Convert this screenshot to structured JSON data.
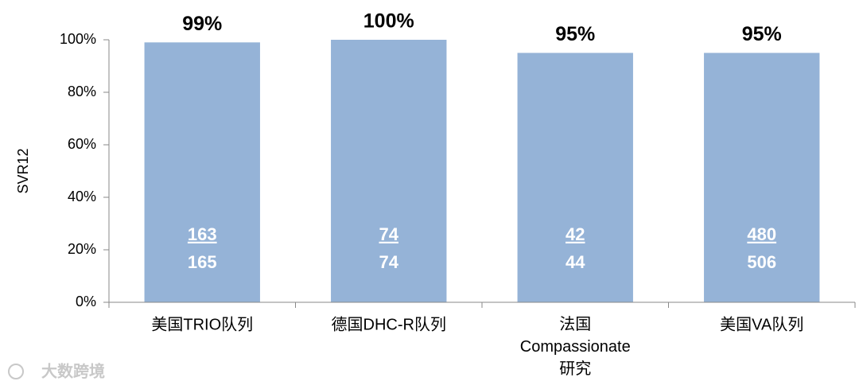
{
  "chart_data": {
    "type": "bar",
    "ylabel": "SVR12",
    "categories": [
      "美国TRIO队列",
      "德国DHC-R队列",
      "法国 Compassionate 研究",
      "美国VA队列"
    ],
    "values": [
      99,
      100,
      95,
      95
    ],
    "value_labels": [
      "99%",
      "100%",
      "95%",
      "95%"
    ],
    "numerators": [
      163,
      74,
      42,
      480
    ],
    "denominators": [
      165,
      74,
      44,
      506
    ],
    "color": "#95b3d7",
    "ylim": [
      0,
      100
    ],
    "yticks": [
      {
        "value": 0,
        "label": "0%"
      },
      {
        "value": 20,
        "label": "20%"
      },
      {
        "value": 40,
        "label": "40%"
      },
      {
        "value": 60,
        "label": "60%"
      },
      {
        "value": 80,
        "label": "80%"
      },
      {
        "value": 100,
        "label": "100%"
      }
    ],
    "grid": false
  },
  "watermark": "大数跨境"
}
